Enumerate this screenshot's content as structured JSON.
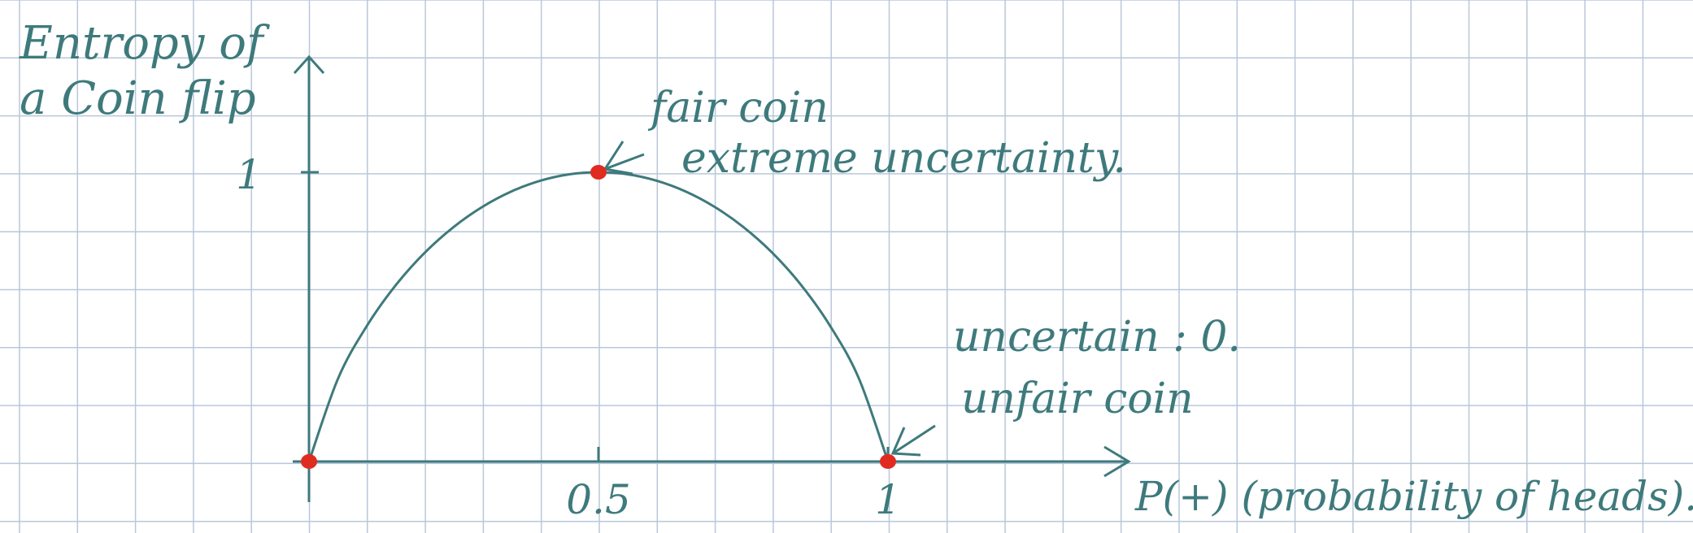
{
  "colors": {
    "background": "#ffffff",
    "grid": "#b9c7da",
    "ink": "#3e7a7c",
    "marker": "#e02b20"
  },
  "chart_data": {
    "type": "line",
    "title": "Entropy of a coin flip",
    "title_lines": [
      "Entropy of",
      "a Coin flip"
    ],
    "xlabel": "P(+) (probability of heads).",
    "ylabel": "",
    "xlim": [
      0,
      1
    ],
    "ylim": [
      0,
      1
    ],
    "x_ticks": [
      {
        "value": 0.5,
        "label": "0.5"
      },
      {
        "value": 1,
        "label": "1"
      }
    ],
    "y_ticks": [
      {
        "value": 1,
        "label": "1"
      }
    ],
    "grid": true,
    "series": [
      {
        "x": [
          0,
          0.05,
          0.1,
          0.15,
          0.2,
          0.25,
          0.3,
          0.35,
          0.4,
          0.45,
          0.5,
          0.55,
          0.6,
          0.65,
          0.7,
          0.75,
          0.8,
          0.85,
          0.9,
          0.95,
          1
        ],
        "y": [
          0,
          0.286,
          0.469,
          0.61,
          0.722,
          0.811,
          0.881,
          0.934,
          0.971,
          0.993,
          1,
          0.993,
          0.971,
          0.934,
          0.881,
          0.811,
          0.722,
          0.61,
          0.469,
          0.286,
          0
        ]
      }
    ],
    "highlighted_points": [
      {
        "x": 0,
        "y": 0
      },
      {
        "x": 0.5,
        "y": 1
      },
      {
        "x": 1,
        "y": 0
      }
    ],
    "annotations": [
      {
        "text": "fair coin",
        "x": 0.5,
        "y": 1
      },
      {
        "text": "extreme uncertainty.",
        "x": 0.5,
        "y": 1
      },
      {
        "text": "uncertain : 0.",
        "x": 1,
        "y": 0
      },
      {
        "text": "unfair coin",
        "x": 1,
        "y": 0
      }
    ]
  }
}
